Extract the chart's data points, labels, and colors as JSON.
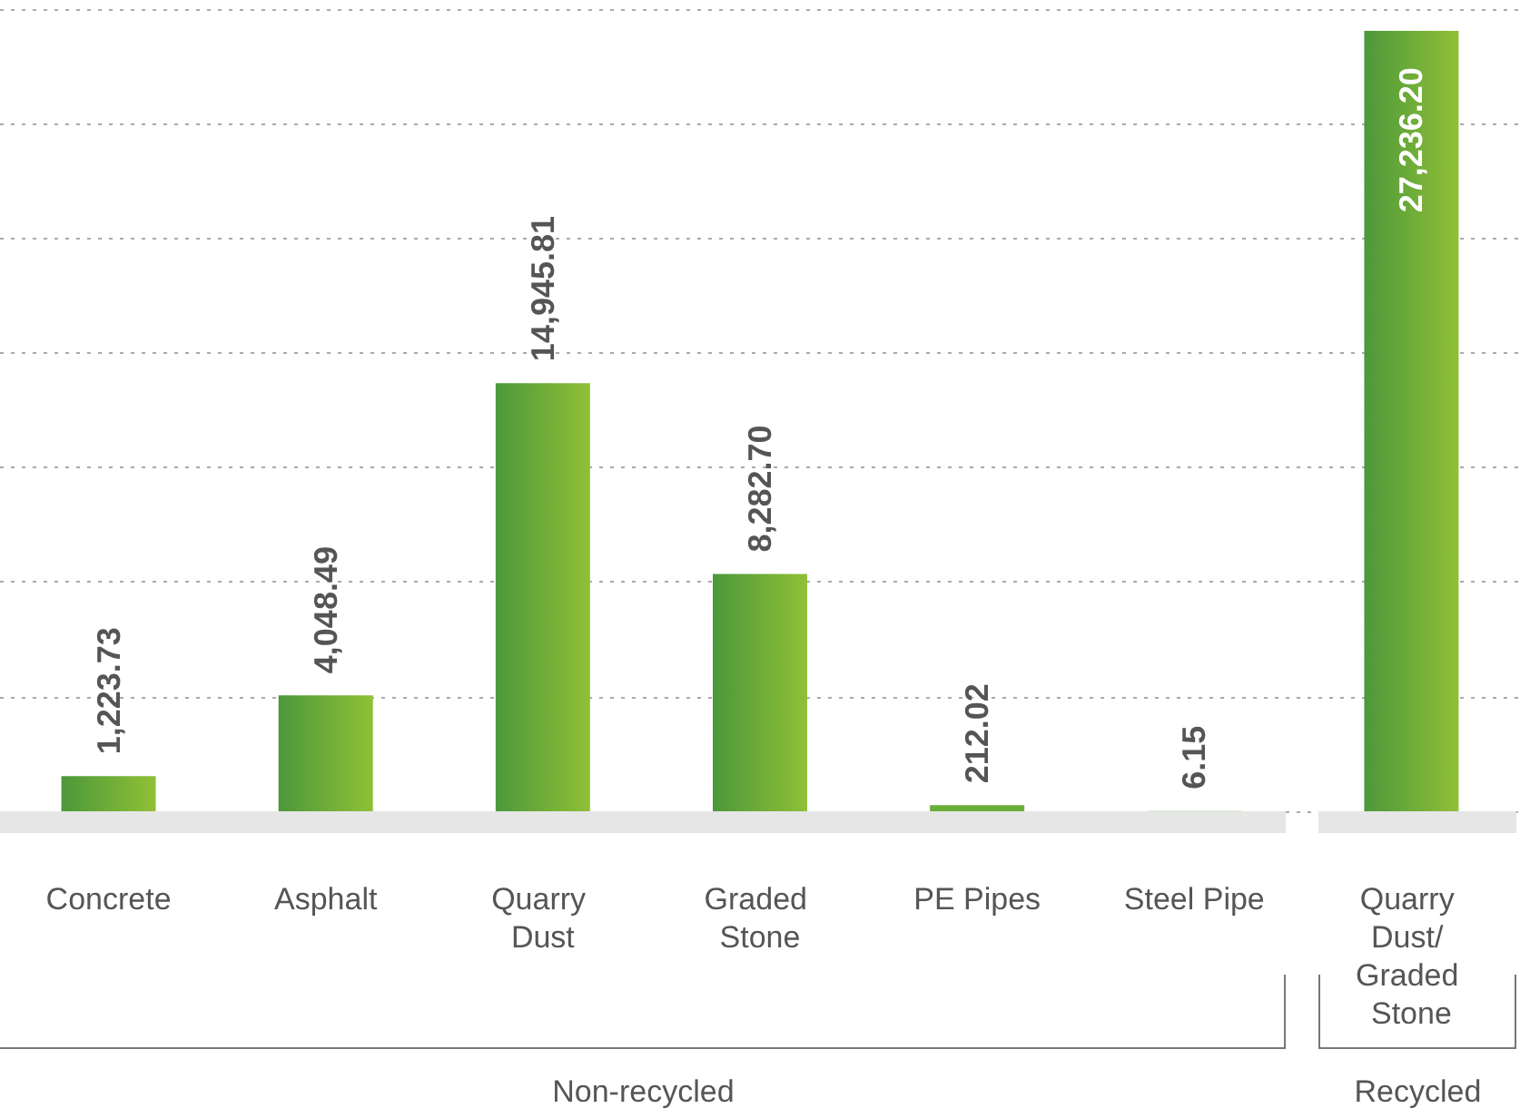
{
  "chart_data": {
    "type": "bar",
    "categories": [
      "Concrete",
      "Asphalt",
      "Quarry Dust",
      "Graded Stone",
      "PE Pipes",
      "Steel Pipe",
      "Quarry Dust/ Graded Stone"
    ],
    "series": [
      {
        "color": "#6aae3a",
        "values": [
          1223.73,
          4048.49,
          14945.81,
          8282.7,
          212.02,
          6.15,
          null
        ],
        "value_labels": [
          "1,223.73",
          "4,048.49",
          "14,945.81",
          "8,282.70",
          "212.02",
          "6.15",
          null
        ]
      },
      {
        "color": "#6aae3a",
        "values": [
          null,
          null,
          null,
          null,
          null,
          null,
          27236.2
        ],
        "value_labels": [
          null,
          null,
          null,
          null,
          null,
          null,
          "27,236.20"
        ]
      }
    ],
    "ylim": [
      0,
      28000
    ],
    "yticks": [
      {
        "value": 0,
        "label": null
      },
      {
        "value": 4000,
        "label": null
      },
      {
        "value": 8000,
        "label": null
      },
      {
        "value": 12000,
        "label": null
      },
      {
        "value": 16000,
        "label": null
      },
      {
        "value": 20000,
        "label": null
      },
      {
        "value": 24000,
        "label": null
      },
      {
        "value": 28000,
        "label": null
      }
    ],
    "annotations": [
      "Non-recycled",
      "Recycled"
    ],
    "grid": "y",
    "tick_labels": "x"
  }
}
